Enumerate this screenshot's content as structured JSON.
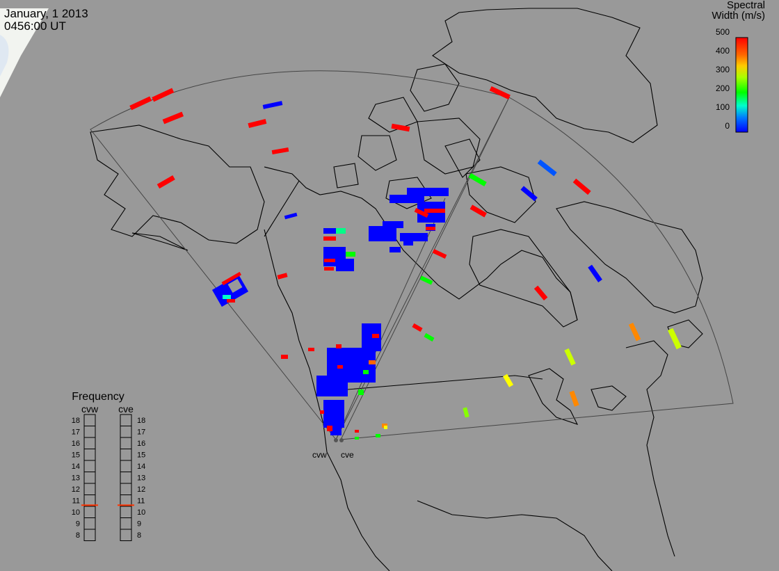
{
  "header": {
    "date": "January, 1 2013",
    "time": "0456:00 UT"
  },
  "colorbar": {
    "title_line1": "Spectral",
    "title_line2": "Width (m/s)",
    "ticks": [
      "500",
      "400",
      "300",
      "200",
      "100",
      "0"
    ],
    "range": [
      0,
      500
    ],
    "colors": [
      "#0000ff",
      "#00aaff",
      "#00ffaa",
      "#00ff00",
      "#aaff00",
      "#ffcc00",
      "#ff6600",
      "#ff0000"
    ]
  },
  "frequency_panel": {
    "title": "Frequency",
    "left_label": "cvw",
    "right_label": "cve",
    "scale": [
      "18",
      "17",
      "16",
      "15",
      "14",
      "13",
      "12",
      "11",
      "10",
      "9",
      "8"
    ],
    "range_mhz": [
      8,
      18
    ],
    "cvw_mhz": 10.6,
    "cve_mhz": 10.6,
    "marker_color": "#ff3300"
  },
  "radars": {
    "cvw_label": "cvw",
    "cve_label": "cve"
  },
  "map": {
    "background": "#999999",
    "land_outline": "#000000",
    "fov_outline": "#444444",
    "ice_color": "#f2f4f0",
    "radar_site_color": "#555555"
  }
}
